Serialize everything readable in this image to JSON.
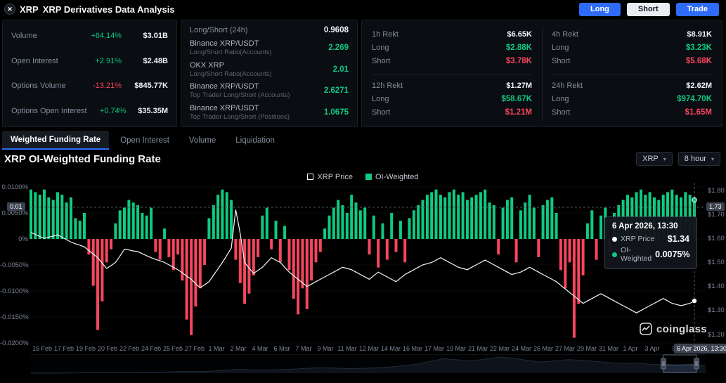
{
  "colors": {
    "green": "#0ecb81",
    "red": "#f6465d",
    "blue": "#2e6bf6",
    "muted": "#848e9c"
  },
  "header": {
    "coin": "XRP",
    "title": "XRP Derivatives Data Analysis",
    "actions": {
      "long": "Long",
      "short": "Short",
      "trade": "Trade"
    }
  },
  "stats": {
    "market": {
      "rows": [
        {
          "label": "Volume",
          "change": "+64.14%",
          "dir": "up",
          "value": "$3.01B"
        },
        {
          "label": "Open Interest",
          "change": "+2.91%",
          "dir": "up",
          "value": "$2.48B"
        },
        {
          "label": "Options Volume",
          "change": "-13.21%",
          "dir": "down",
          "value": "$845.77K"
        },
        {
          "label": "Options Open Interest",
          "change": "+0.74%",
          "dir": "up",
          "value": "$35.35M"
        }
      ]
    },
    "ratios": {
      "rows": [
        {
          "label": "Long/Short (24h)",
          "sub": "",
          "value": "0.9608",
          "color": "white"
        },
        {
          "label": "Binance XRP/USDT",
          "sub": "Long/Short Ratio(Accounts)",
          "value": "2.269",
          "color": "green"
        },
        {
          "label": "OKX XRP",
          "sub": "Long/Short Ratio(Accounts)",
          "value": "2.01",
          "color": "green"
        },
        {
          "label": "Binance XRP/USDT",
          "sub": "Top Trader Long/Short (Accounts)",
          "value": "2.6271",
          "color": "green"
        },
        {
          "label": "Binance XRP/USDT",
          "sub": "Top Trader Long/Short (Positions)",
          "value": "1.0675",
          "color": "green"
        }
      ]
    },
    "rekt": {
      "long_label": "Long",
      "short_label": "Short",
      "blocks": [
        {
          "period": "1h Rekt",
          "total": "$6.65K",
          "long": "$2.88K",
          "short": "$3.78K"
        },
        {
          "period": "4h Rekt",
          "total": "$8.91K",
          "long": "$3.23K",
          "short": "$5.68K"
        },
        {
          "period": "12h Rekt",
          "total": "$1.27M",
          "long": "$58.67K",
          "short": "$1.21M"
        },
        {
          "period": "24h Rekt",
          "total": "$2.62M",
          "long": "$974.70K",
          "short": "$1.65M"
        }
      ]
    }
  },
  "tabs": [
    {
      "label": "Weighted Funding Rate",
      "active": true
    },
    {
      "label": "Open Interest",
      "active": false
    },
    {
      "label": "Volume",
      "active": false
    },
    {
      "label": "Liquidation",
      "active": false
    }
  ],
  "chart_header": {
    "title": "XRP OI-Weighted Funding Rate",
    "symbol_select": "XRP",
    "interval_select": "8 hour"
  },
  "legend": [
    {
      "label": "XRP Price",
      "type": "line",
      "color": "#ffffff"
    },
    {
      "label": "OI-Weighted",
      "type": "bar",
      "color": "#0ecb81"
    }
  ],
  "tooltip": {
    "title": "6 Apr 2026, 13:30",
    "rows": [
      {
        "name": "XRP Price",
        "value": "$1.34"
      },
      {
        "name": "OI-Weighted",
        "value": "0.0075%"
      }
    ]
  },
  "crosshair": {
    "x_label": "6 Apr 2026, 13:30",
    "left_label": "0.01",
    "right_label": "1.73"
  },
  "watermark": "coinglass",
  "chart_data": {
    "type": "combo",
    "title": "XRP OI-Weighted Funding Rate",
    "interval": "8 hour",
    "left_axis": {
      "label": "OI-Weighted Funding Rate",
      "unit": "%",
      "ticks": [
        "0.0100%",
        "0.0050%",
        "0%",
        "-0.0050%",
        "-0.0100%",
        "-0.0150%",
        "-0.0200%"
      ],
      "min": -0.021,
      "max": 0.0105
    },
    "right_axis": {
      "label": "XRP Price",
      "unit": "USD",
      "ticks": [
        "$1.80",
        "$1.70",
        "$1.60",
        "$1.50",
        "$1.40",
        "$1.30",
        "$1.20"
      ],
      "min": 1.167,
      "max": 1.838
    },
    "x_ticks": [
      "15 Feb",
      "17 Feb",
      "19 Feb",
      "20 Feb",
      "22 Feb",
      "24 Feb",
      "25 Feb",
      "27 Feb",
      "1 Mar",
      "2 Mar",
      "4 Mar",
      "6 Mar",
      "7 Mar",
      "9 Mar",
      "11 Mar",
      "12 Mar",
      "14 Mar",
      "16 Mar",
      "17 Mar",
      "19 Mar",
      "21 Mar",
      "22 Mar",
      "24 Mar",
      "26 Mar",
      "27 Mar",
      "29 Mar",
      "31 Mar",
      "1 Apr",
      "3 Apr",
      "5"
    ],
    "series": [
      {
        "name": "OI-Weighted",
        "type": "bar",
        "unit": "%",
        "values": [
          0.0095,
          0.009,
          0.0085,
          0.0095,
          0.008,
          0.0075,
          0.009,
          0.0085,
          0.007,
          0.008,
          0.004,
          0.0035,
          0.005,
          -0.003,
          -0.009,
          -0.0175,
          -0.012,
          -0.0045,
          -0.002,
          0.003,
          0.0055,
          0.006,
          0.0075,
          0.007,
          0.0065,
          0.005,
          0.0045,
          0.006,
          -0.0025,
          -0.004,
          0.002,
          -0.0035,
          -0.006,
          -0.003,
          -0.008,
          -0.0155,
          -0.0185,
          -0.013,
          -0.0095,
          -0.005,
          0.004,
          0.0065,
          0.0085,
          0.0095,
          0.009,
          0.0075,
          -0.004,
          -0.0085,
          -0.0125,
          -0.0105,
          -0.007,
          -0.0035,
          0.0045,
          0.006,
          -0.002,
          0.0035,
          -0.0045,
          0.0025,
          -0.006,
          -0.0115,
          -0.0145,
          -0.0095,
          -0.0135,
          -0.008,
          -0.0045,
          -0.0025,
          0.002,
          0.0045,
          0.006,
          0.0075,
          0.0065,
          0.005,
          0.0085,
          0.007,
          0.0055,
          0.006,
          -0.003,
          0.0045,
          -0.0055,
          0.003,
          -0.004,
          0.005,
          -0.0025,
          0.0035,
          -0.0045,
          0.004,
          0.0055,
          0.0065,
          0.0075,
          0.0085,
          0.009,
          0.0095,
          0.0085,
          0.008,
          0.009,
          0.0095,
          0.0085,
          0.009,
          0.0075,
          0.008,
          0.0085,
          0.009,
          0.0095,
          0.007,
          0.0065,
          -0.003,
          0.006,
          0.0075,
          0.008,
          -0.0045,
          0.0055,
          0.007,
          0.0085,
          0.006,
          -0.0035,
          0.0065,
          0.0075,
          0.008,
          0.005,
          -0.006,
          -0.0095,
          -0.0045,
          -0.019,
          -0.0125,
          -0.007,
          0.003,
          0.0055,
          -0.004,
          0.0045,
          0.006,
          -0.0025,
          0.005,
          0.0065,
          0.0075,
          0.0085,
          0.008,
          0.009,
          0.0095,
          0.0085,
          0.009,
          0.008,
          0.0075,
          0.0085,
          0.009,
          0.0095,
          0.0085,
          0.008,
          0.009,
          0.0085,
          0.0075
        ]
      },
      {
        "name": "XRP Price",
        "type": "line",
        "unit": "USD",
        "values": [
          1.625,
          1.617,
          1.608,
          1.6,
          1.605,
          1.61,
          1.615,
          1.605,
          1.595,
          1.585,
          1.578,
          1.572,
          1.565,
          1.55,
          1.535,
          1.52,
          1.497,
          1.475,
          1.487,
          1.5,
          1.527,
          1.555,
          1.552,
          1.548,
          1.545,
          1.537,
          1.528,
          1.52,
          1.513,
          1.507,
          1.5,
          1.49,
          1.48,
          1.47,
          1.457,
          1.443,
          1.43,
          1.412,
          1.395,
          1.407,
          1.42,
          1.447,
          1.473,
          1.5,
          1.53,
          1.56,
          1.72,
          1.62,
          1.5,
          1.477,
          1.455,
          1.467,
          1.48,
          1.5,
          1.52,
          1.51,
          1.5,
          1.48,
          1.46,
          1.445,
          1.43,
          1.415,
          1.4,
          1.41,
          1.42,
          1.43,
          1.44,
          1.45,
          1.46,
          1.47,
          1.48,
          1.475,
          1.47,
          1.46,
          1.45,
          1.44,
          1.43,
          1.445,
          1.46,
          1.45,
          1.44,
          1.43,
          1.42,
          1.435,
          1.45,
          1.46,
          1.47,
          1.48,
          1.49,
          1.495,
          1.5,
          1.51,
          1.52,
          1.51,
          1.5,
          1.49,
          1.48,
          1.475,
          1.47,
          1.48,
          1.49,
          1.5,
          1.51,
          1.5,
          1.49,
          1.48,
          1.47,
          1.46,
          1.45,
          1.455,
          1.46,
          1.47,
          1.48,
          1.47,
          1.46,
          1.45,
          1.44,
          1.43,
          1.42,
          1.405,
          1.39,
          1.375,
          1.36,
          1.345,
          1.33,
          1.34,
          1.35,
          1.36,
          1.37,
          1.36,
          1.35,
          1.34,
          1.33,
          1.32,
          1.31,
          1.3,
          1.29,
          1.3,
          1.31,
          1.32,
          1.33,
          1.34,
          1.35,
          1.34,
          1.33,
          1.325,
          1.32,
          1.325,
          1.33,
          1.34
        ]
      }
    ],
    "navigator": {
      "values": [
        0.02,
        0.03,
        0.04,
        0.05,
        0.07,
        0.09,
        0.11,
        0.1,
        0.12,
        0.16,
        0.22,
        0.3,
        0.28,
        0.34,
        0.5,
        0.66,
        0.6,
        0.55,
        0.63,
        0.72,
        0.85,
        1.0,
        0.92,
        0.82,
        0.86,
        0.96,
        1.1,
        1.32,
        1.62,
        2.1,
        2.6,
        2.4,
        2.2,
        2.52,
        2.9,
        2.7,
        2.3,
        2.0,
        2.2,
        2.42,
        2.3,
        2.1,
        1.9,
        1.72,
        1.8,
        1.62,
        1.52,
        1.46,
        1.52,
        1.4
      ]
    }
  }
}
